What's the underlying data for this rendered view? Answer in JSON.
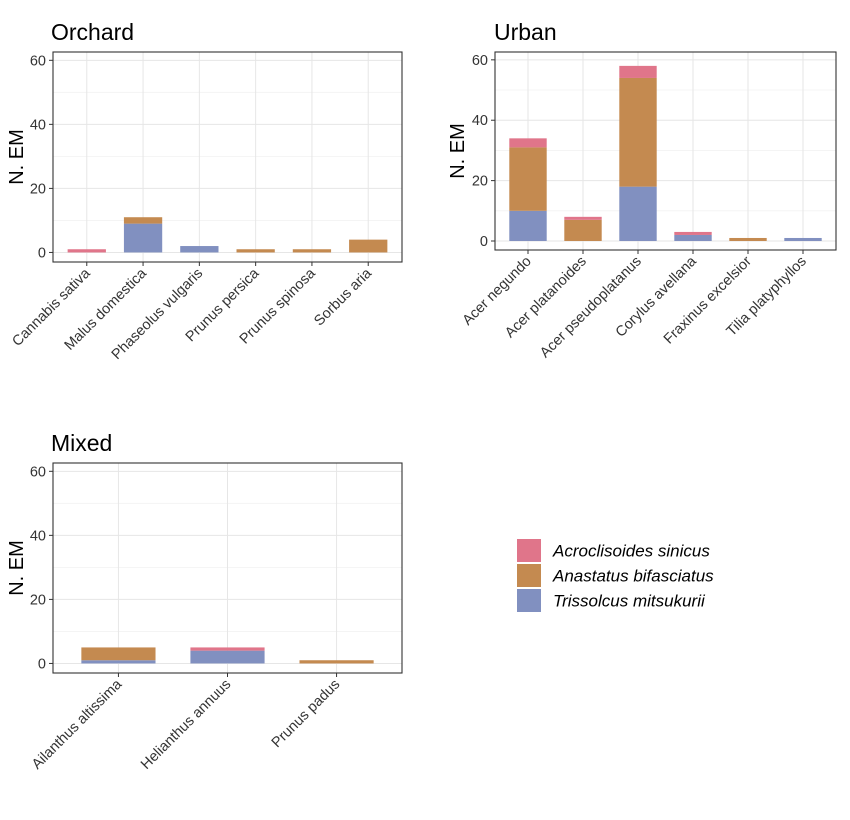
{
  "colors": {
    "Acroclisoides sinicus": "#e0758a",
    "Anastatus bifasciatus": "#c48a50",
    "Trissolcus mitsukurii": "#8190c0"
  },
  "legend": {
    "position": "right",
    "entries": [
      "Acroclisoides sinicus",
      "Anastatus bifasciatus",
      "Trissolcus mitsukurii"
    ]
  },
  "chart_data": [
    {
      "type": "bar",
      "stacked": true,
      "title": "Orchard",
      "xlabel": "",
      "ylabel": "N. EM",
      "ylim": [
        0,
        62
      ],
      "yticks": [
        0,
        20,
        40,
        60
      ],
      "grid": true,
      "categories": [
        "Cannabis sativa",
        "Malus domestica",
        "Phaseolus vulgaris",
        "Prunus persica",
        "Prunus spinosa",
        "Sorbus aria"
      ],
      "series": [
        {
          "name": "Trissolcus mitsukurii",
          "values": [
            0,
            9,
            2,
            0,
            0,
            0
          ]
        },
        {
          "name": "Anastatus bifasciatus",
          "values": [
            0,
            2,
            0,
            1,
            1,
            4
          ]
        },
        {
          "name": "Acroclisoides sinicus",
          "values": [
            1,
            0,
            0,
            0,
            0,
            0
          ]
        }
      ]
    },
    {
      "type": "bar",
      "stacked": true,
      "title": "Urban",
      "xlabel": "",
      "ylabel": "N. EM",
      "ylim": [
        0,
        62
      ],
      "yticks": [
        0,
        20,
        40,
        60
      ],
      "grid": true,
      "categories": [
        "Acer negundo",
        "Acer platanoides",
        "Acer pseudoplatanus",
        "Corylus avellana",
        "Fraxinus excelsior",
        "Tilia platyphyllos"
      ],
      "series": [
        {
          "name": "Trissolcus mitsukurii",
          "values": [
            10,
            0,
            18,
            2,
            0,
            1
          ]
        },
        {
          "name": "Anastatus bifasciatus",
          "values": [
            21,
            7,
            36,
            0,
            1,
            0
          ]
        },
        {
          "name": "Acroclisoides sinicus",
          "values": [
            3,
            1,
            4,
            1,
            0,
            0
          ]
        }
      ]
    },
    {
      "type": "bar",
      "stacked": true,
      "title": "Mixed",
      "xlabel": "",
      "ylabel": "N. EM",
      "ylim": [
        0,
        62
      ],
      "yticks": [
        0,
        20,
        40,
        60
      ],
      "grid": true,
      "categories": [
        "Ailanthus altissima",
        "Helianthus annuus",
        "Prunus padus"
      ],
      "series": [
        {
          "name": "Trissolcus mitsukurii",
          "values": [
            1,
            4,
            0
          ]
        },
        {
          "name": "Anastatus bifasciatus",
          "values": [
            4,
            0,
            1
          ]
        },
        {
          "name": "Acroclisoides sinicus",
          "values": [
            0,
            1,
            0
          ]
        }
      ]
    }
  ]
}
